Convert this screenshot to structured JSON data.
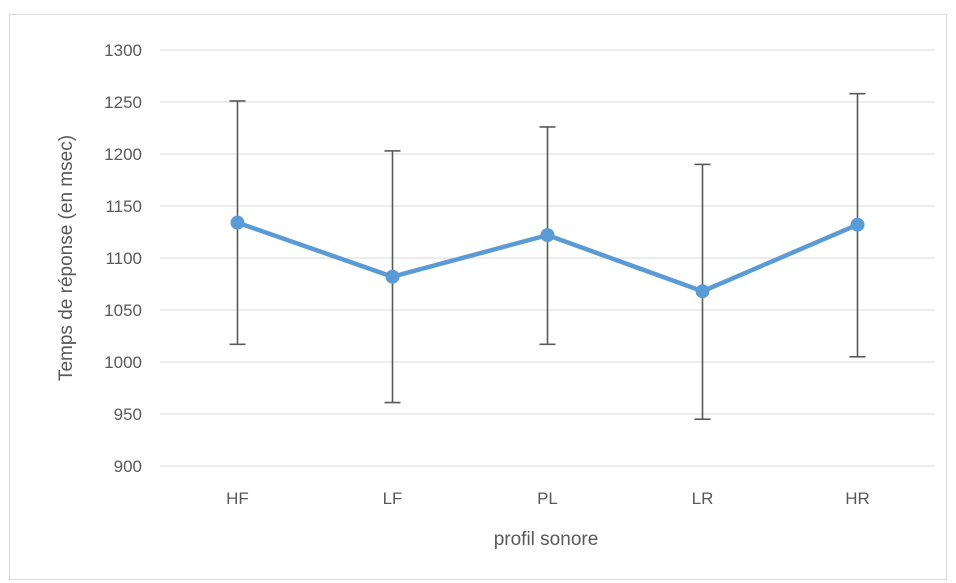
{
  "chart_data": {
    "type": "line",
    "title": "",
    "xlabel": "profil sonore",
    "ylabel": "Temps de réponse (en msec)",
    "categories": [
      "HF",
      "LF",
      "PL",
      "LR",
      "HR"
    ],
    "series": [
      {
        "values": [
          1134,
          1082,
          1122,
          1068,
          1132
        ],
        "error_low": [
          1017,
          961,
          1017,
          945,
          1005
        ],
        "error_high": [
          1251,
          1203,
          1226,
          1190,
          1258
        ]
      }
    ],
    "ylim": [
      900,
      1300
    ],
    "yticks": [
      900,
      950,
      1000,
      1050,
      1100,
      1150,
      1200,
      1250,
      1300
    ],
    "grid": true,
    "legend": "none",
    "colors": {
      "line": "#5b9bd5",
      "error_bar": "#595959",
      "grid": "#d9d9d9",
      "text": "#595959"
    }
  }
}
